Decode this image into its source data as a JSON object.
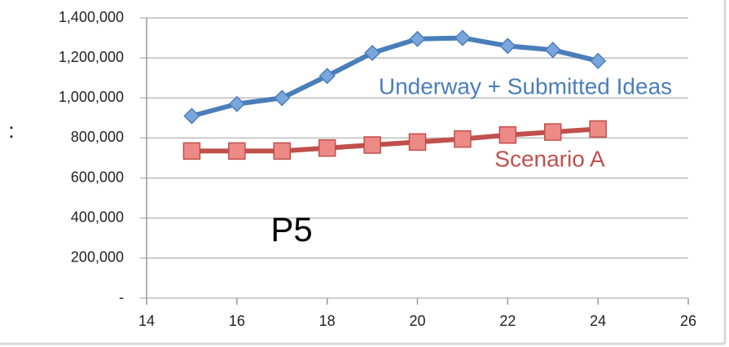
{
  "chart_data": {
    "type": "line",
    "x": [
      15,
      16,
      17,
      18,
      19,
      20,
      21,
      22,
      23,
      24
    ],
    "series": [
      {
        "name": "Underway + Submitted Ideas",
        "color": "#4a7ebb",
        "marker": "diamond",
        "values": [
          910000,
          970000,
          1000000,
          1110000,
          1225000,
          1295000,
          1300000,
          1260000,
          1240000,
          1185000
        ]
      },
      {
        "name": "Scenario A",
        "color": "#c0504d",
        "marker": "square",
        "values": [
          735000,
          735000,
          735000,
          750000,
          765000,
          780000,
          795000,
          815000,
          830000,
          845000
        ]
      }
    ],
    "xlim": [
      14,
      26
    ],
    "xticks": [
      14,
      16,
      18,
      20,
      22,
      24,
      26
    ],
    "ylim": [
      0,
      1400000
    ],
    "yticks": [
      {
        "value": 0,
        "label": "-"
      },
      {
        "value": 200000,
        "label": "200,000"
      },
      {
        "value": 400000,
        "label": "400,000"
      },
      {
        "value": 600000,
        "label": "600,000"
      },
      {
        "value": 800000,
        "label": "800,000"
      },
      {
        "value": 1000000,
        "label": "1,000,000"
      },
      {
        "value": 1200000,
        "label": "1,200,000"
      },
      {
        "value": 1400000,
        "label": "1,400,000"
      }
    ],
    "grid": true,
    "annotations": [
      "P5",
      ":"
    ]
  }
}
